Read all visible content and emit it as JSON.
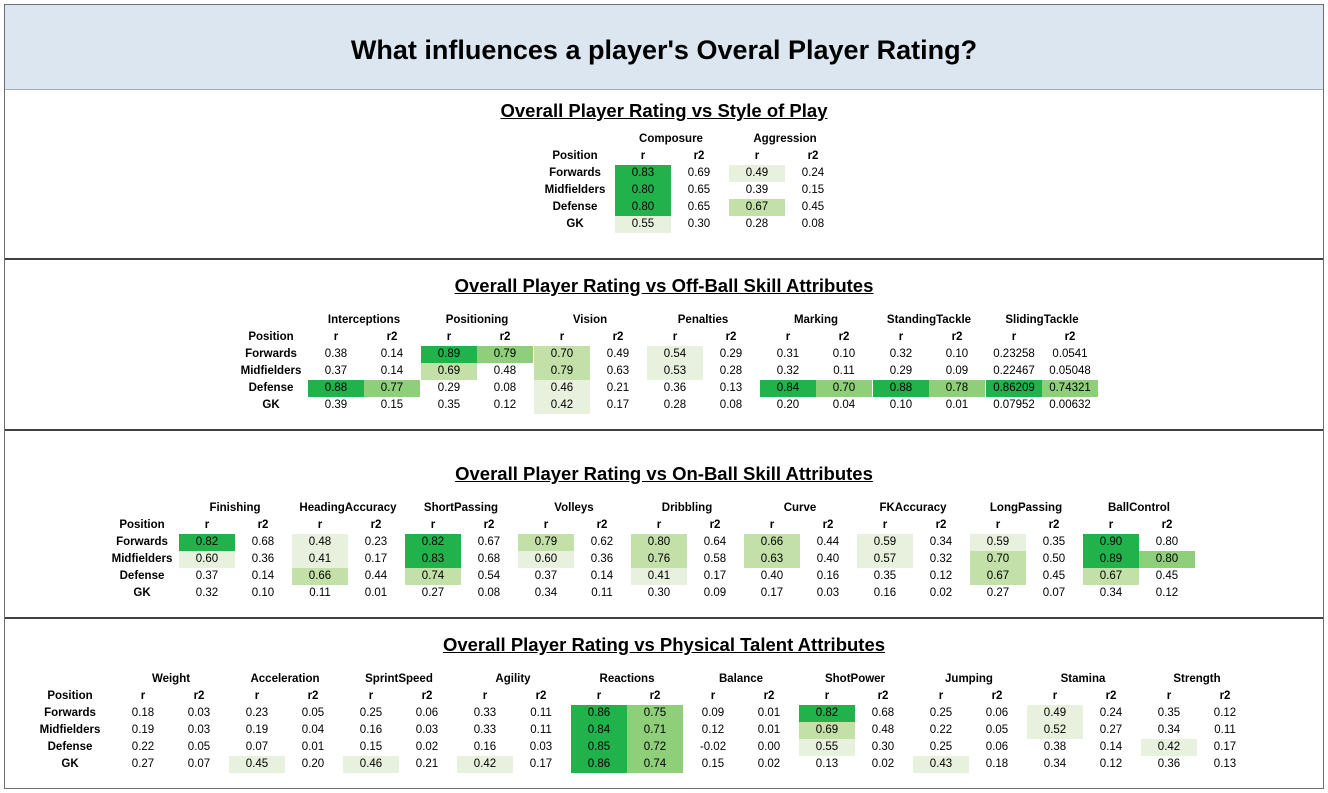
{
  "page": {
    "title": "What influences a player's Overal Player Rating?"
  },
  "labels": {
    "position": "Position",
    "r": "r",
    "r2": "r2"
  },
  "colors": {
    "header_bg": "#dce6f1",
    "strong": "#21b24c",
    "medium": "#8fcf7a",
    "light": "#c3e0a8",
    "faint": "#e8f1dd"
  },
  "positions": [
    "Forwards",
    "Midfielders",
    "Defense",
    "GK"
  ],
  "sections": [
    {
      "title": "Overall Player Rating vs Style of Play",
      "attributes": [
        {
          "name": "Composure",
          "r": [
            "0.83",
            "0.80",
            "0.80",
            "0.55"
          ],
          "r2": [
            "0.69",
            "0.65",
            "0.65",
            "0.30"
          ],
          "r_shade": [
            "strong",
            "strong",
            "strong",
            "faint"
          ],
          "r2_shade": [
            "",
            "",
            "",
            ""
          ]
        },
        {
          "name": "Aggression",
          "r": [
            "0.49",
            "0.39",
            "0.67",
            "0.28"
          ],
          "r2": [
            "0.24",
            "0.15",
            "0.45",
            "0.08"
          ],
          "r_shade": [
            "faint",
            "",
            "light",
            ""
          ],
          "r2_shade": [
            "",
            "",
            "",
            ""
          ]
        }
      ]
    },
    {
      "title": "Overall Player Rating vs Off-Ball Skill Attributes",
      "attributes": [
        {
          "name": "Interceptions",
          "r": [
            "0.38",
            "0.37",
            "0.88",
            "0.39"
          ],
          "r2": [
            "0.14",
            "0.14",
            "0.77",
            "0.15"
          ],
          "r_shade": [
            "",
            "",
            "strong",
            ""
          ],
          "r2_shade": [
            "",
            "",
            "medium",
            ""
          ]
        },
        {
          "name": "Positioning",
          "r": [
            "0.89",
            "0.69",
            "0.29",
            "0.35"
          ],
          "r2": [
            "0.79",
            "0.48",
            "0.08",
            "0.12"
          ],
          "r_shade": [
            "strong",
            "light",
            "",
            ""
          ],
          "r2_shade": [
            "medium",
            "",
            "",
            ""
          ]
        },
        {
          "name": "Vision",
          "r": [
            "0.70",
            "0.79",
            "0.46",
            "0.42"
          ],
          "r2": [
            "0.49",
            "0.63",
            "0.21",
            "0.17"
          ],
          "r_shade": [
            "light",
            "light",
            "faint",
            "faint"
          ],
          "r2_shade": [
            "",
            "",
            "",
            ""
          ]
        },
        {
          "name": "Penalties",
          "r": [
            "0.54",
            "0.53",
            "0.36",
            "0.28"
          ],
          "r2": [
            "0.29",
            "0.28",
            "0.13",
            "0.08"
          ],
          "r_shade": [
            "faint",
            "faint",
            "",
            ""
          ],
          "r2_shade": [
            "",
            "",
            "",
            ""
          ]
        },
        {
          "name": "Marking",
          "r": [
            "0.31",
            "0.32",
            "0.84",
            "0.20"
          ],
          "r2": [
            "0.10",
            "0.11",
            "0.70",
            "0.04"
          ],
          "r_shade": [
            "",
            "",
            "strong",
            ""
          ],
          "r2_shade": [
            "",
            "",
            "medium",
            ""
          ]
        },
        {
          "name": "StandingTackle",
          "r": [
            "0.32",
            "0.29",
            "0.88",
            "0.10"
          ],
          "r2": [
            "0.10",
            "0.09",
            "0.78",
            "0.01"
          ],
          "r_shade": [
            "",
            "",
            "strong",
            ""
          ],
          "r2_shade": [
            "",
            "",
            "medium",
            ""
          ]
        },
        {
          "name": "SlidingTackle",
          "r": [
            "0.23258",
            "0.22467",
            "0.86209",
            "0.07952"
          ],
          "r2": [
            "0.0541",
            "0.05048",
            "0.74321",
            "0.00632"
          ],
          "r_shade": [
            "",
            "",
            "strong",
            ""
          ],
          "r2_shade": [
            "",
            "",
            "medium",
            ""
          ]
        }
      ]
    },
    {
      "title": "Overall Player Rating vs On-Ball Skill Attributes",
      "attributes": [
        {
          "name": "Finishing",
          "r": [
            "0.82",
            "0.60",
            "0.37",
            "0.32"
          ],
          "r2": [
            "0.68",
            "0.36",
            "0.14",
            "0.10"
          ],
          "r_shade": [
            "strong",
            "faint",
            "",
            ""
          ],
          "r2_shade": [
            "",
            "",
            "",
            ""
          ]
        },
        {
          "name": "HeadingAccuracy",
          "r": [
            "0.48",
            "0.41",
            "0.66",
            "0.11"
          ],
          "r2": [
            "0.23",
            "0.17",
            "0.44",
            "0.01"
          ],
          "r_shade": [
            "faint",
            "faint",
            "light",
            ""
          ],
          "r2_shade": [
            "",
            "",
            "",
            ""
          ]
        },
        {
          "name": "ShortPassing",
          "r": [
            "0.82",
            "0.83",
            "0.74",
            "0.27"
          ],
          "r2": [
            "0.67",
            "0.68",
            "0.54",
            "0.08"
          ],
          "r_shade": [
            "strong",
            "strong",
            "light",
            ""
          ],
          "r2_shade": [
            "",
            "",
            "",
            ""
          ]
        },
        {
          "name": "Volleys",
          "r": [
            "0.79",
            "0.60",
            "0.37",
            "0.34"
          ],
          "r2": [
            "0.62",
            "0.36",
            "0.14",
            "0.11"
          ],
          "r_shade": [
            "light",
            "faint",
            "",
            ""
          ],
          "r2_shade": [
            "",
            "",
            "",
            ""
          ]
        },
        {
          "name": "Dribbling",
          "r": [
            "0.80",
            "0.76",
            "0.41",
            "0.30"
          ],
          "r2": [
            "0.64",
            "0.58",
            "0.17",
            "0.09"
          ],
          "r_shade": [
            "light",
            "light",
            "faint",
            ""
          ],
          "r2_shade": [
            "",
            "",
            "",
            ""
          ]
        },
        {
          "name": "Curve",
          "r": [
            "0.66",
            "0.63",
            "0.40",
            "0.17"
          ],
          "r2": [
            "0.44",
            "0.40",
            "0.16",
            "0.03"
          ],
          "r_shade": [
            "light",
            "light",
            "",
            ""
          ],
          "r2_shade": [
            "",
            "",
            "",
            ""
          ]
        },
        {
          "name": "FKAccuracy",
          "r": [
            "0.59",
            "0.57",
            "0.35",
            "0.16"
          ],
          "r2": [
            "0.34",
            "0.32",
            "0.12",
            "0.02"
          ],
          "r_shade": [
            "faint",
            "faint",
            "",
            ""
          ],
          "r2_shade": [
            "",
            "",
            "",
            ""
          ]
        },
        {
          "name": "LongPassing",
          "r": [
            "0.59",
            "0.70",
            "0.67",
            "0.27"
          ],
          "r2": [
            "0.35",
            "0.50",
            "0.45",
            "0.07"
          ],
          "r_shade": [
            "faint",
            "light",
            "light",
            ""
          ],
          "r2_shade": [
            "",
            "",
            "",
            ""
          ]
        },
        {
          "name": "BallControl",
          "r": [
            "0.90",
            "0.89",
            "0.67",
            "0.34"
          ],
          "r2": [
            "0.80",
            "0.80",
            "0.45",
            "0.12"
          ],
          "r_shade": [
            "strong",
            "strong",
            "light",
            ""
          ],
          "r2_shade": [
            "",
            "medium",
            "",
            ""
          ]
        }
      ]
    },
    {
      "title": "Overall Player Rating vs Physical Talent Attributes",
      "attributes": [
        {
          "name": "Weight",
          "r": [
            "0.18",
            "0.19",
            "0.22",
            "0.27"
          ],
          "r2": [
            "0.03",
            "0.03",
            "0.05",
            "0.07"
          ],
          "r_shade": [
            "",
            "",
            "",
            ""
          ],
          "r2_shade": [
            "",
            "",
            "",
            ""
          ]
        },
        {
          "name": "Acceleration",
          "r": [
            "0.23",
            "0.19",
            "0.07",
            "0.45"
          ],
          "r2": [
            "0.05",
            "0.04",
            "0.01",
            "0.20"
          ],
          "r_shade": [
            "",
            "",
            "",
            "faint"
          ],
          "r2_shade": [
            "",
            "",
            "",
            ""
          ]
        },
        {
          "name": "SprintSpeed",
          "r": [
            "0.25",
            "0.16",
            "0.15",
            "0.46"
          ],
          "r2": [
            "0.06",
            "0.03",
            "0.02",
            "0.21"
          ],
          "r_shade": [
            "",
            "",
            "",
            "faint"
          ],
          "r2_shade": [
            "",
            "",
            "",
            ""
          ]
        },
        {
          "name": "Agility",
          "r": [
            "0.33",
            "0.33",
            "0.16",
            "0.42"
          ],
          "r2": [
            "0.11",
            "0.11",
            "0.03",
            "0.17"
          ],
          "r_shade": [
            "",
            "",
            "",
            "faint"
          ],
          "r2_shade": [
            "",
            "",
            "",
            ""
          ]
        },
        {
          "name": "Reactions",
          "r": [
            "0.86",
            "0.84",
            "0.85",
            "0.86"
          ],
          "r2": [
            "0.75",
            "0.71",
            "0.72",
            "0.74"
          ],
          "r_shade": [
            "strong",
            "strong",
            "strong",
            "strong"
          ],
          "r2_shade": [
            "medium",
            "medium",
            "medium",
            "medium"
          ]
        },
        {
          "name": "Balance",
          "r": [
            "0.09",
            "0.12",
            "-0.02",
            "0.15"
          ],
          "r2": [
            "0.01",
            "0.01",
            "0.00",
            "0.02"
          ],
          "r_shade": [
            "",
            "",
            "",
            ""
          ],
          "r2_shade": [
            "",
            "",
            "",
            ""
          ]
        },
        {
          "name": "ShotPower",
          "r": [
            "0.82",
            "0.69",
            "0.55",
            "0.13"
          ],
          "r2": [
            "0.68",
            "0.48",
            "0.30",
            "0.02"
          ],
          "r_shade": [
            "strong",
            "light",
            "faint",
            ""
          ],
          "r2_shade": [
            "",
            "",
            "",
            ""
          ]
        },
        {
          "name": "Jumping",
          "r": [
            "0.25",
            "0.22",
            "0.25",
            "0.43"
          ],
          "r2": [
            "0.06",
            "0.05",
            "0.06",
            "0.18"
          ],
          "r_shade": [
            "",
            "",
            "",
            "faint"
          ],
          "r2_shade": [
            "",
            "",
            "",
            ""
          ]
        },
        {
          "name": "Stamina",
          "r": [
            "0.49",
            "0.52",
            "0.38",
            "0.34"
          ],
          "r2": [
            "0.24",
            "0.27",
            "0.14",
            "0.12"
          ],
          "r_shade": [
            "faint",
            "faint",
            "",
            ""
          ],
          "r2_shade": [
            "",
            "",
            "",
            ""
          ]
        },
        {
          "name": "Strength",
          "r": [
            "0.35",
            "0.34",
            "0.42",
            "0.36"
          ],
          "r2": [
            "0.12",
            "0.11",
            "0.17",
            "0.13"
          ],
          "r_shade": [
            "",
            "",
            "faint",
            ""
          ],
          "r2_shade": [
            "",
            "",
            "",
            ""
          ]
        }
      ]
    }
  ]
}
